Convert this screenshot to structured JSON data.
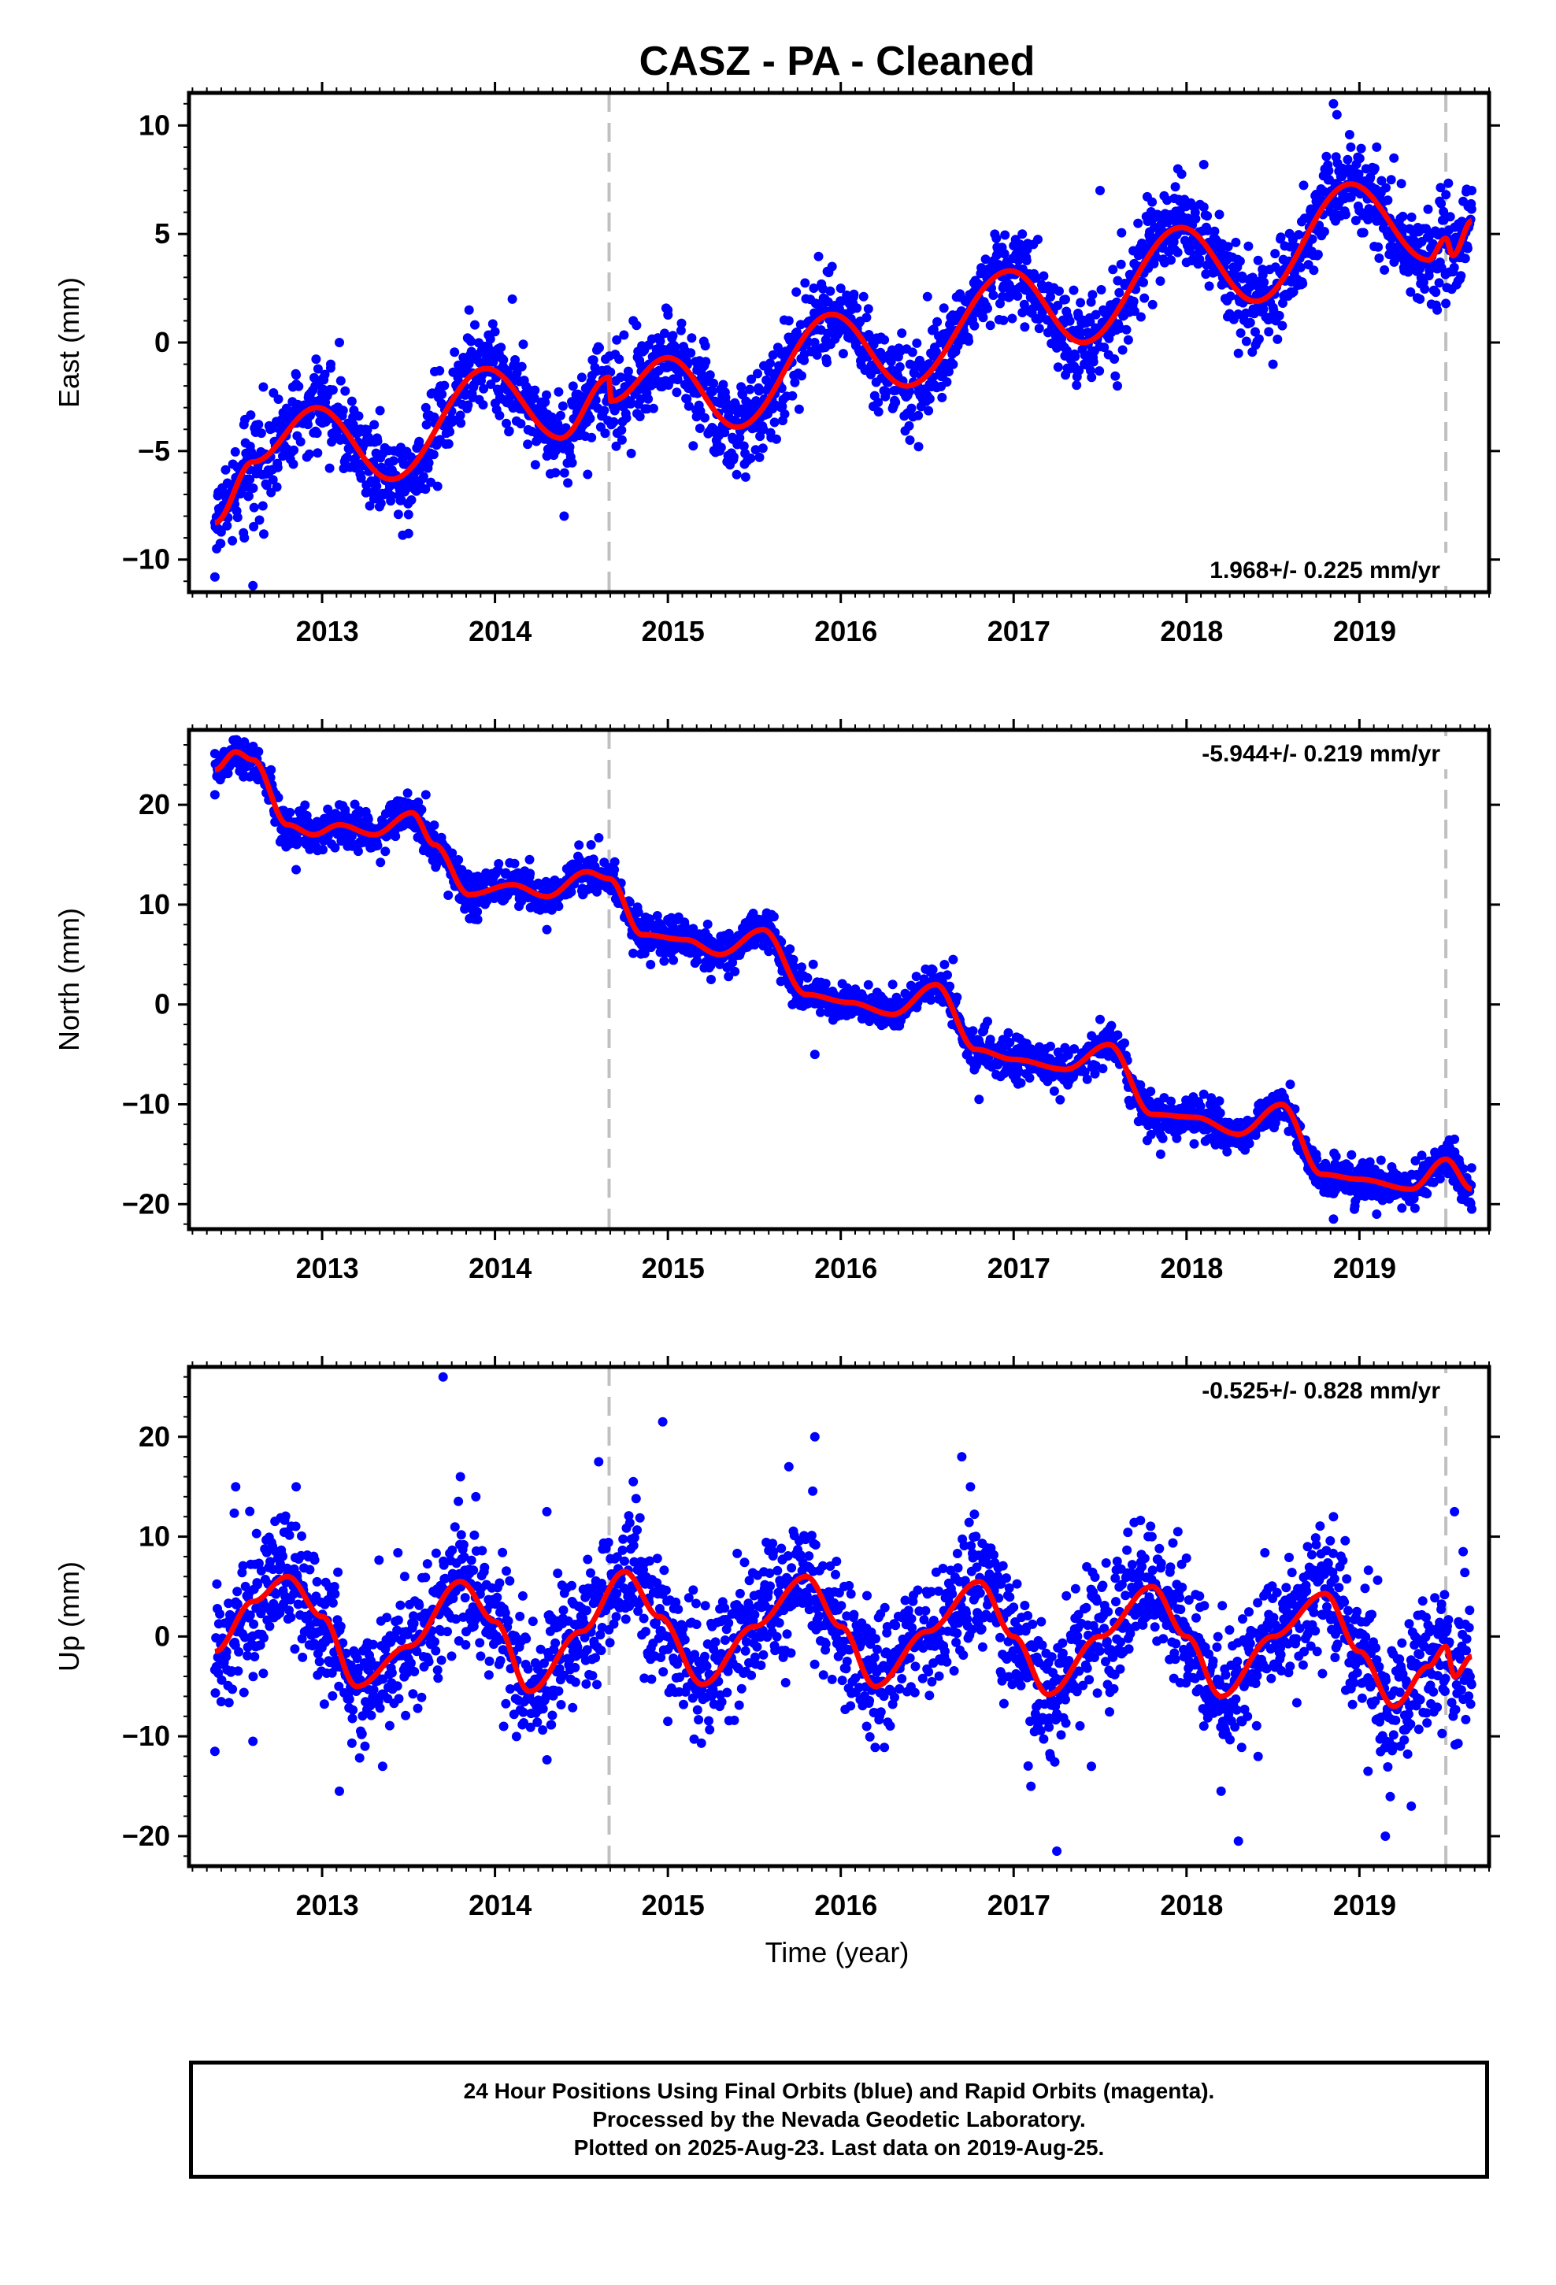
{
  "title": "CASZ  - PA - Cleaned",
  "xlabel": "Time (year)",
  "footer": {
    "line1": "24 Hour Positions Using Final Orbits (blue) and Rapid Orbits (magenta).",
    "line2": "Processed by the Nevada Geodetic Laboratory.",
    "line3": "Plotted on 2025-Aug-23. Last data on 2019-Aug-25."
  },
  "colors": {
    "data": "#0000ff",
    "model": "#ff0000",
    "break_line": "#c0c0c0",
    "frame": "#000000"
  },
  "chart_data": [
    {
      "type": "scatter",
      "ylabel": "East (mm)",
      "rate": "1.968+/- 0.225 mm/yr",
      "rate_position": "bottom-right",
      "xlim": [
        2012.23,
        2019.75
      ],
      "ylim": [
        -11.5,
        11.5
      ],
      "yticks": [
        -10,
        -5,
        0,
        5,
        10
      ],
      "xticks": [
        2013,
        2014,
        2015,
        2016,
        2017,
        2018,
        2019
      ],
      "breaks": [
        2014.66,
        2019.5
      ],
      "grid": false,
      "model_curve": [
        [
          2012.38,
          -8.3
        ],
        [
          2012.6,
          -5.5
        ],
        [
          2012.97,
          -3.0
        ],
        [
          2013.4,
          -6.3
        ],
        [
          2013.95,
          -1.2
        ],
        [
          2014.38,
          -4.4
        ],
        [
          2014.66,
          -1.6
        ],
        [
          2014.67,
          -2.7
        ],
        [
          2015.0,
          -0.7
        ],
        [
          2015.4,
          -3.9
        ],
        [
          2015.95,
          1.3
        ],
        [
          2016.38,
          -2.0
        ],
        [
          2016.98,
          3.3
        ],
        [
          2017.4,
          0.0
        ],
        [
          2017.97,
          5.3
        ],
        [
          2018.4,
          1.9
        ],
        [
          2018.95,
          7.3
        ],
        [
          2019.4,
          3.8
        ],
        [
          2019.5,
          4.8
        ],
        [
          2019.54,
          4.0
        ],
        [
          2019.65,
          5.6
        ]
      ],
      "scatter_points": [
        [
          2012.38,
          -10.8
        ],
        [
          2012.39,
          -9.5
        ],
        [
          2012.45,
          -7.0
        ],
        [
          2012.55,
          -9.0
        ],
        [
          2012.6,
          -11.2
        ],
        [
          2012.7,
          -4.0
        ],
        [
          2012.85,
          -1.5
        ],
        [
          2013.05,
          -1.0
        ],
        [
          2013.1,
          0.0
        ],
        [
          2013.3,
          -7.2
        ],
        [
          2013.5,
          -8.8
        ],
        [
          2013.6,
          -3.0
        ],
        [
          2013.85,
          1.5
        ],
        [
          2014.0,
          0.5
        ],
        [
          2014.1,
          2.0
        ],
        [
          2014.35,
          -6.0
        ],
        [
          2014.4,
          -8.0
        ],
        [
          2014.5,
          -2.5
        ],
        [
          2014.55,
          -3.5
        ],
        [
          2014.8,
          1.0
        ],
        [
          2015.0,
          1.5
        ],
        [
          2015.3,
          -5.0
        ],
        [
          2015.45,
          -6.2
        ],
        [
          2015.7,
          1.0
        ],
        [
          2015.95,
          3.5
        ],
        [
          2016.0,
          2.5
        ],
        [
          2016.2,
          -0.5
        ],
        [
          2016.4,
          -4.5
        ],
        [
          2016.45,
          -4.8
        ],
        [
          2016.9,
          4.8
        ],
        [
          2017.05,
          5.0
        ],
        [
          2017.3,
          -1.5
        ],
        [
          2017.5,
          7.0
        ],
        [
          2017.6,
          -2.0
        ],
        [
          2017.95,
          8.0
        ],
        [
          2018.1,
          8.2
        ],
        [
          2018.3,
          -0.5
        ],
        [
          2018.5,
          -1.0
        ],
        [
          2018.75,
          6.5
        ],
        [
          2018.85,
          11.0
        ],
        [
          2018.87,
          10.5
        ],
        [
          2018.95,
          9.0
        ],
        [
          2019.1,
          9.0
        ],
        [
          2019.2,
          8.5
        ],
        [
          2019.35,
          2.0
        ],
        [
          2019.45,
          1.5
        ],
        [
          2019.5,
          1.8
        ],
        [
          2019.6,
          6.5
        ],
        [
          2019.65,
          7.0
        ]
      ]
    },
    {
      "type": "scatter",
      "ylabel": "North (mm)",
      "rate": "-5.944+/- 0.219 mm/yr",
      "rate_position": "top-right",
      "xlim": [
        2012.23,
        2019.75
      ],
      "ylim": [
        -22.5,
        27.5
      ],
      "yticks": [
        -20,
        -10,
        0,
        10,
        20
      ],
      "xticks": [
        2013,
        2014,
        2015,
        2016,
        2017,
        2018,
        2019
      ],
      "breaks": [
        2014.66,
        2019.5
      ],
      "grid": false,
      "model_curve": [
        [
          2012.38,
          23.5
        ],
        [
          2012.5,
          25.3
        ],
        [
          2012.6,
          24.5
        ],
        [
          2012.8,
          18.0
        ],
        [
          2012.95,
          17.0
        ],
        [
          2013.1,
          18.0
        ],
        [
          2013.3,
          17.0
        ],
        [
          2013.52,
          19.2
        ],
        [
          2013.65,
          16.0
        ],
        [
          2013.85,
          11.0
        ],
        [
          2014.1,
          12.0
        ],
        [
          2014.3,
          10.8
        ],
        [
          2014.53,
          13.3
        ],
        [
          2014.66,
          12.6
        ],
        [
          2014.85,
          7.0
        ],
        [
          2015.1,
          6.5
        ],
        [
          2015.3,
          5.0
        ],
        [
          2015.55,
          7.5
        ],
        [
          2015.8,
          1.0
        ],
        [
          2016.05,
          0.2
        ],
        [
          2016.3,
          -1.0
        ],
        [
          2016.55,
          2.0
        ],
        [
          2016.78,
          -4.5
        ],
        [
          2017.0,
          -5.5
        ],
        [
          2017.3,
          -6.5
        ],
        [
          2017.55,
          -4.0
        ],
        [
          2017.8,
          -11.0
        ],
        [
          2018.05,
          -11.3
        ],
        [
          2018.3,
          -13.0
        ],
        [
          2018.55,
          -10.0
        ],
        [
          2018.78,
          -17.0
        ],
        [
          2019.0,
          -17.5
        ],
        [
          2019.3,
          -18.5
        ],
        [
          2019.5,
          -15.5
        ],
        [
          2019.65,
          -18.5
        ]
      ],
      "scatter_points": [
        [
          2012.38,
          21.0
        ],
        [
          2012.5,
          26.0
        ],
        [
          2012.55,
          26.3
        ],
        [
          2012.85,
          13.5
        ],
        [
          2013.1,
          20.0
        ],
        [
          2013.6,
          21.0
        ],
        [
          2013.9,
          8.5
        ],
        [
          2014.2,
          14.5
        ],
        [
          2014.3,
          7.5
        ],
        [
          2014.55,
          14.0
        ],
        [
          2014.9,
          4.0
        ],
        [
          2015.0,
          8.5
        ],
        [
          2015.25,
          2.5
        ],
        [
          2015.6,
          9.0
        ],
        [
          2015.85,
          -5.0
        ],
        [
          2016.3,
          2.0
        ],
        [
          2016.6,
          4.0
        ],
        [
          2016.65,
          4.5
        ],
        [
          2016.8,
          -9.5
        ],
        [
          2017.5,
          -1.5
        ],
        [
          2017.85,
          -15.0
        ],
        [
          2018.1,
          -9.0
        ],
        [
          2018.6,
          -8.0
        ],
        [
          2018.85,
          -21.5
        ],
        [
          2019.1,
          -21.0
        ],
        [
          2019.55,
          -13.5
        ],
        [
          2019.65,
          -20.5
        ]
      ]
    },
    {
      "type": "scatter",
      "ylabel": "Up (mm)",
      "rate": "-0.525+/- 0.828 mm/yr",
      "rate_position": "top-right",
      "xlim": [
        2012.23,
        2019.75
      ],
      "ylim": [
        -23,
        27
      ],
      "yticks": [
        -20,
        -10,
        0,
        10,
        20
      ],
      "xticks": [
        2013,
        2014,
        2015,
        2016,
        2017,
        2018,
        2019
      ],
      "breaks": [
        2014.66,
        2019.5
      ],
      "grid": false,
      "model_curve": [
        [
          2012.38,
          -1.5
        ],
        [
          2012.6,
          3.5
        ],
        [
          2012.8,
          6.0
        ],
        [
          2013.0,
          2.0
        ],
        [
          2013.2,
          -5.0
        ],
        [
          2013.5,
          -1.0
        ],
        [
          2013.8,
          5.5
        ],
        [
          2014.0,
          1.5
        ],
        [
          2014.2,
          -5.5
        ],
        [
          2014.5,
          0.5
        ],
        [
          2014.75,
          6.5
        ],
        [
          2014.95,
          2.0
        ],
        [
          2015.2,
          -4.8
        ],
        [
          2015.5,
          1.0
        ],
        [
          2015.8,
          6.0
        ],
        [
          2016.0,
          1.0
        ],
        [
          2016.2,
          -5.0
        ],
        [
          2016.5,
          0.5
        ],
        [
          2016.8,
          5.5
        ],
        [
          2017.0,
          0.0
        ],
        [
          2017.2,
          -5.8
        ],
        [
          2017.5,
          0.0
        ],
        [
          2017.8,
          5.0
        ],
        [
          2018.0,
          0.0
        ],
        [
          2018.2,
          -6.0
        ],
        [
          2018.5,
          0.0
        ],
        [
          2018.8,
          4.3
        ],
        [
          2019.0,
          -1.5
        ],
        [
          2019.2,
          -7.0
        ],
        [
          2019.4,
          -3.0
        ],
        [
          2019.5,
          -1.0
        ],
        [
          2019.55,
          -4.0
        ],
        [
          2019.65,
          -2.0
        ]
      ],
      "scatter_points": [
        [
          2012.38,
          -11.5
        ],
        [
          2012.5,
          15.0
        ],
        [
          2012.6,
          -10.5
        ],
        [
          2012.85,
          15.0
        ],
        [
          2013.1,
          -15.5
        ],
        [
          2013.35,
          -13.0
        ],
        [
          2013.7,
          26.0
        ],
        [
          2013.8,
          16.0
        ],
        [
          2014.05,
          -9.0
        ],
        [
          2014.3,
          12.5
        ],
        [
          2014.6,
          17.5
        ],
        [
          2014.8,
          15.5
        ],
        [
          2014.97,
          21.5
        ],
        [
          2015.0,
          -8.5
        ],
        [
          2015.3,
          -7.0
        ],
        [
          2015.7,
          17.0
        ],
        [
          2015.85,
          20.0
        ],
        [
          2016.15,
          -9.0
        ],
        [
          2016.7,
          18.0
        ],
        [
          2016.75,
          15.0
        ],
        [
          2017.1,
          -15.0
        ],
        [
          2017.25,
          -21.5
        ],
        [
          2017.45,
          -13.0
        ],
        [
          2017.8,
          10.0
        ],
        [
          2017.95,
          10.5
        ],
        [
          2018.2,
          -15.5
        ],
        [
          2018.3,
          -20.5
        ],
        [
          2018.7,
          9.0
        ],
        [
          2018.85,
          12.0
        ],
        [
          2019.05,
          -13.5
        ],
        [
          2019.15,
          -20.0
        ],
        [
          2019.3,
          -17.0
        ],
        [
          2019.55,
          12.5
        ],
        [
          2019.6,
          8.5
        ]
      ]
    }
  ]
}
